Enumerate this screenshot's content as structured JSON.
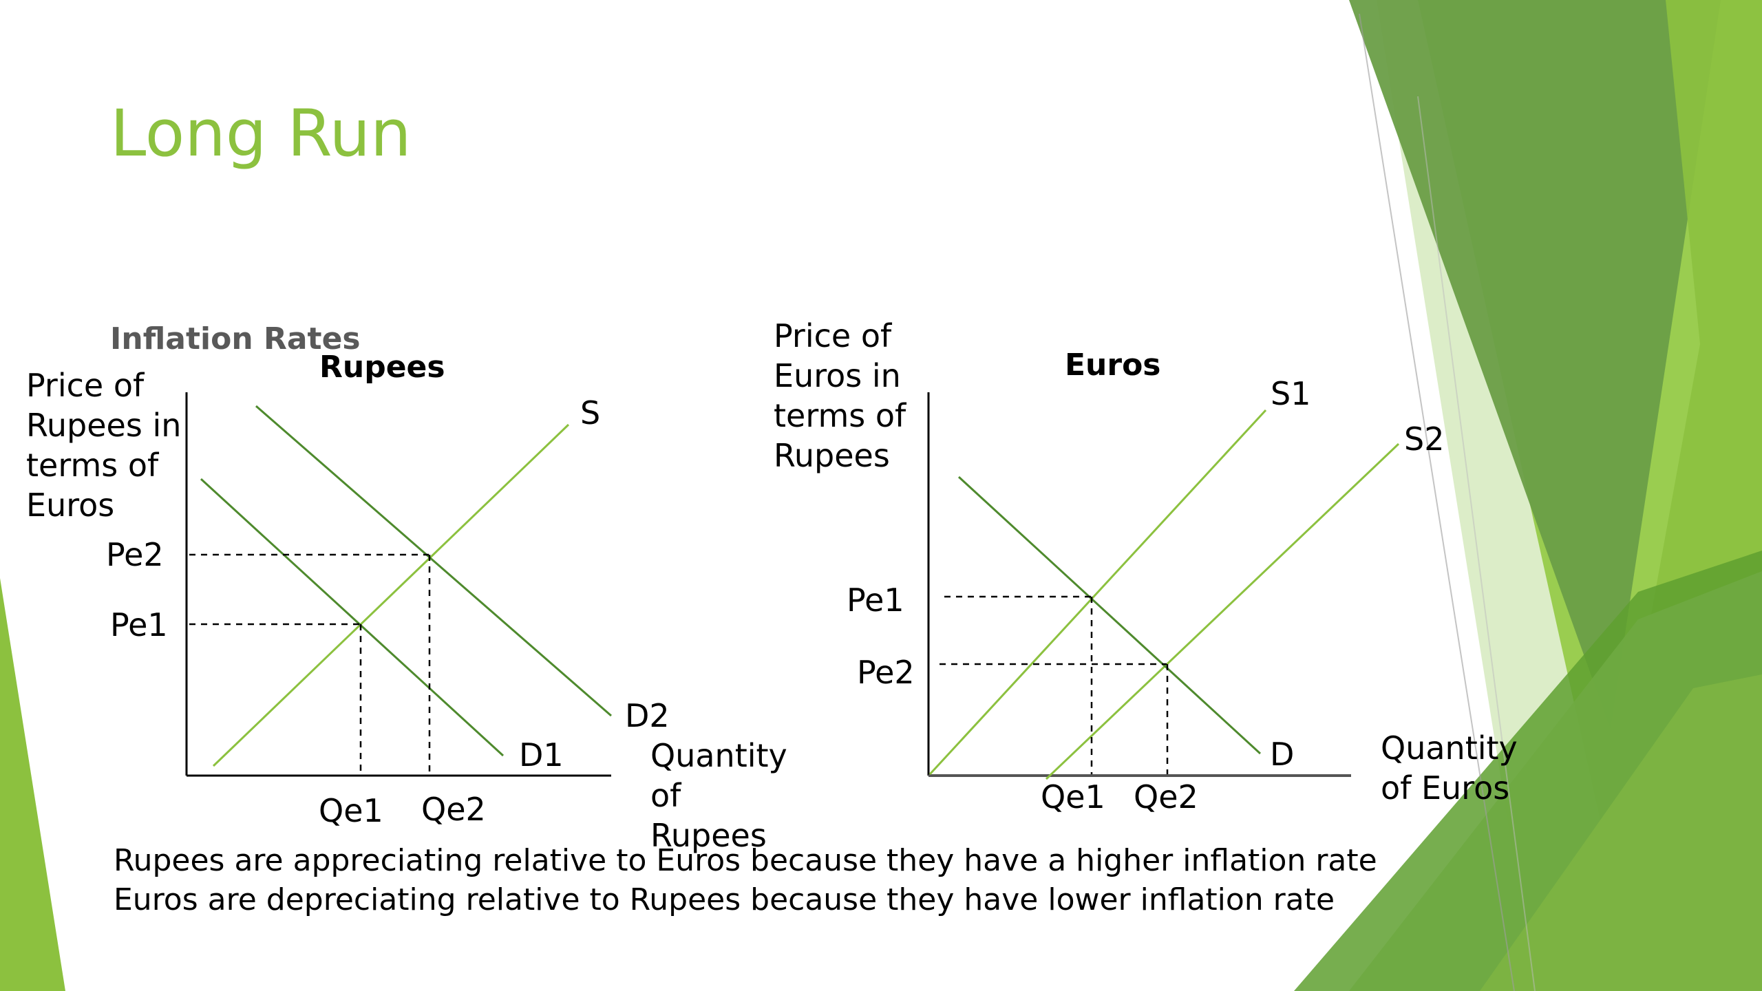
{
  "slide": {
    "title": "Long Run",
    "subheading": "Inflation Rates",
    "captions": [
      "Rupees are appreciating relative to Euros because they have a higher inflation rate",
      "Euros are depreciating relative to Rupees because they have lower inflation rate"
    ]
  },
  "rupees_diagram": {
    "title": "Rupees",
    "y_axis_label_lines": [
      "Price of",
      "Rupees in",
      "terms of",
      "Euros"
    ],
    "x_axis_label_lines": [
      "Quantity",
      "of",
      "Rupees"
    ],
    "supply_label": "S",
    "demand_labels": [
      "D1",
      "D2"
    ],
    "price_labels": [
      "Pe2",
      "Pe1"
    ],
    "quantity_labels": [
      "Qe1",
      "Qe2"
    ]
  },
  "euros_diagram": {
    "title": "Euros",
    "y_axis_label_lines": [
      "Price of",
      "Euros in",
      "terms of",
      "Rupees"
    ],
    "x_axis_label_lines": [
      "Quantity",
      "of Euros"
    ],
    "supply_labels": [
      "S1",
      "S2"
    ],
    "demand_label": "D",
    "price_labels": [
      "Pe1",
      "Pe2"
    ],
    "quantity_labels": [
      "Qe1",
      "Qe2"
    ]
  },
  "colors": {
    "title": "#8cc13f",
    "curve": "#8cc13f",
    "axis": "#000000",
    "guide": "#000000",
    "accent_dark": "#4e8a2d",
    "accent_mid": "#7cb342",
    "accent_light": "#c5e1a5"
  }
}
